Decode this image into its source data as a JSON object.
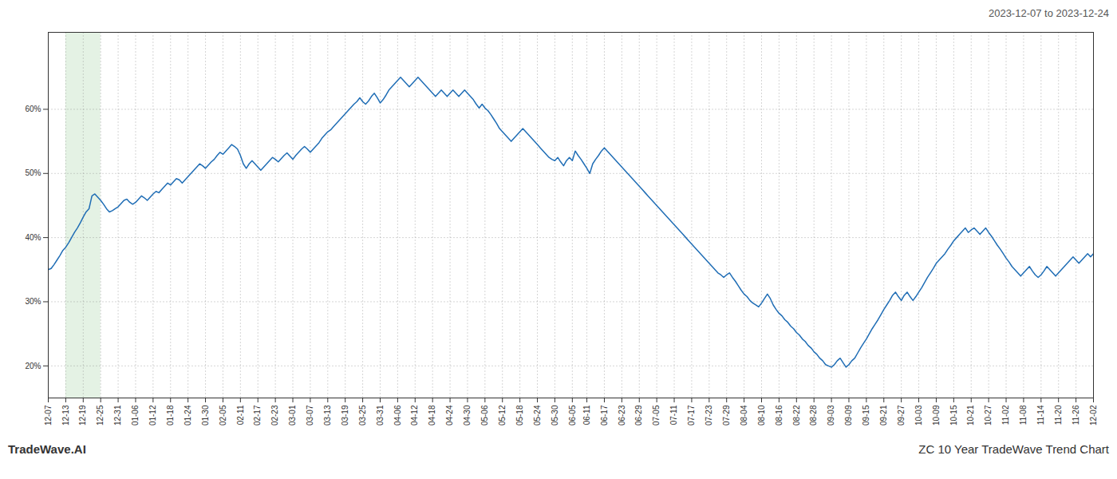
{
  "chart_data": {
    "type": "line",
    "annotations": [
      "2023-12-07 to 2023-12-24",
      "TradeWave.AI",
      "ZC 10 Year TradeWave Trend Chart"
    ],
    "color": "#1f6db5",
    "grid": true,
    "highlight": {
      "from": "12-13",
      "to": "12-25",
      "color": "#d9edd9"
    },
    "ylim": [
      15,
      72
    ],
    "yticks": [
      {
        "value": 20,
        "label": "20%"
      },
      {
        "value": 30,
        "label": "30%"
      },
      {
        "value": 40,
        "label": "40%"
      },
      {
        "value": 50,
        "label": "50%"
      },
      {
        "value": 60,
        "label": "60%"
      }
    ],
    "categories": [
      "12-07",
      null,
      null,
      null,
      null,
      null,
      "12-13",
      null,
      null,
      null,
      null,
      null,
      "12-19",
      null,
      null,
      null,
      null,
      null,
      "12-25",
      null,
      null,
      null,
      null,
      null,
      "12-31",
      null,
      null,
      null,
      null,
      null,
      "01-06",
      null,
      null,
      null,
      null,
      null,
      "01-12",
      null,
      null,
      null,
      null,
      null,
      "01-18",
      null,
      null,
      null,
      null,
      null,
      "01-24",
      null,
      null,
      null,
      null,
      null,
      "01-30",
      null,
      null,
      null,
      null,
      null,
      "02-05",
      null,
      null,
      null,
      null,
      null,
      "02-11",
      null,
      null,
      null,
      null,
      null,
      "02-17",
      null,
      null,
      null,
      null,
      null,
      "02-23",
      null,
      null,
      null,
      null,
      null,
      "03-01",
      null,
      null,
      null,
      null,
      null,
      "03-07",
      null,
      null,
      null,
      null,
      null,
      "03-13",
      null,
      null,
      null,
      null,
      null,
      "03-19",
      null,
      null,
      null,
      null,
      null,
      "03-25",
      null,
      null,
      null,
      null,
      null,
      "03-31",
      null,
      null,
      null,
      null,
      null,
      "04-06",
      null,
      null,
      null,
      null,
      null,
      "04-12",
      null,
      null,
      null,
      null,
      null,
      "04-18",
      null,
      null,
      null,
      null,
      null,
      "04-24",
      null,
      null,
      null,
      null,
      null,
      "04-30",
      null,
      null,
      null,
      null,
      null,
      "05-06",
      null,
      null,
      null,
      null,
      null,
      "05-12",
      null,
      null,
      null,
      null,
      null,
      "05-18",
      null,
      null,
      null,
      null,
      null,
      "05-24",
      null,
      null,
      null,
      null,
      null,
      "05-30",
      null,
      null,
      null,
      null,
      null,
      "06-05",
      null,
      null,
      null,
      null,
      "06-11",
      null,
      null,
      null,
      null,
      null,
      "06-17",
      null,
      null,
      null,
      null,
      null,
      "06-23",
      null,
      null,
      null,
      null,
      null,
      "06-29",
      null,
      null,
      null,
      null,
      null,
      "07-05",
      null,
      null,
      null,
      null,
      null,
      "07-11",
      null,
      null,
      null,
      null,
      null,
      "07-17",
      null,
      null,
      null,
      null,
      null,
      "07-23",
      null,
      null,
      null,
      null,
      null,
      "07-29",
      null,
      null,
      null,
      null,
      null,
      "08-04",
      null,
      null,
      null,
      null,
      null,
      "08-10",
      null,
      null,
      null,
      null,
      null,
      "08-16",
      null,
      null,
      null,
      null,
      null,
      "08-22",
      null,
      null,
      null,
      null,
      null,
      "08-28",
      null,
      null,
      null,
      null,
      null,
      "09-03",
      null,
      null,
      null,
      null,
      null,
      "09-09",
      null,
      null,
      null,
      null,
      null,
      "09-15",
      null,
      null,
      null,
      null,
      null,
      "09-21",
      null,
      null,
      null,
      null,
      null,
      "09-27",
      null,
      null,
      null,
      null,
      null,
      "10-03",
      null,
      null,
      null,
      null,
      null,
      "10-09",
      null,
      null,
      null,
      null,
      null,
      "10-15",
      null,
      null,
      null,
      null,
      null,
      "10-21",
      null,
      null,
      null,
      null,
      null,
      "10-27",
      null,
      null,
      null,
      null,
      null,
      "11-02",
      null,
      null,
      null,
      null,
      null,
      "11-08",
      null,
      null,
      null,
      null,
      null,
      "11-14",
      null,
      null,
      null,
      null,
      null,
      "11-20",
      null,
      null,
      null,
      null,
      null,
      "11-26",
      null,
      null,
      null,
      null,
      null,
      "12-02"
    ],
    "values": [
      35.0,
      35.2,
      35.8,
      36.5,
      37.2,
      38.0,
      38.5,
      39.2,
      40.0,
      40.8,
      41.5,
      42.3,
      43.2,
      44.0,
      44.5,
      46.5,
      46.8,
      46.3,
      45.8,
      45.2,
      44.5,
      44.0,
      44.2,
      44.5,
      44.8,
      45.3,
      45.8,
      46.0,
      45.5,
      45.2,
      45.5,
      46.0,
      46.5,
      46.2,
      45.8,
      46.3,
      46.8,
      47.2,
      47.0,
      47.5,
      48.0,
      48.5,
      48.2,
      48.7,
      49.2,
      49.0,
      48.5,
      49.0,
      49.5,
      50.0,
      50.5,
      51.0,
      51.5,
      51.2,
      50.8,
      51.3,
      51.8,
      52.2,
      52.8,
      53.3,
      53.0,
      53.5,
      54.0,
      54.5,
      54.2,
      53.8,
      52.8,
      51.5,
      50.8,
      51.5,
      52.0,
      51.5,
      51.0,
      50.5,
      51.0,
      51.5,
      52.0,
      52.5,
      52.2,
      51.8,
      52.3,
      52.8,
      53.2,
      52.7,
      52.2,
      52.8,
      53.3,
      53.8,
      54.2,
      53.8,
      53.3,
      53.8,
      54.3,
      54.8,
      55.5,
      56.0,
      56.5,
      56.8,
      57.3,
      57.8,
      58.3,
      58.8,
      59.3,
      59.8,
      60.3,
      60.8,
      61.2,
      61.8,
      61.2,
      60.8,
      61.3,
      62.0,
      62.5,
      61.8,
      61.0,
      61.5,
      62.2,
      63.0,
      63.5,
      64.0,
      64.5,
      65.0,
      64.5,
      64.0,
      63.5,
      64.0,
      64.5,
      65.0,
      64.5,
      64.0,
      63.5,
      63.0,
      62.5,
      62.0,
      62.5,
      63.0,
      62.5,
      62.0,
      62.5,
      63.0,
      62.5,
      62.0,
      62.5,
      63.0,
      62.5,
      62.0,
      61.5,
      60.8,
      60.2,
      60.8,
      60.2,
      59.8,
      59.2,
      58.5,
      57.8,
      57.0,
      56.5,
      56.0,
      55.5,
      55.0,
      55.5,
      56.0,
      56.5,
      57.0,
      56.5,
      56.0,
      55.5,
      55.0,
      54.5,
      54.0,
      53.5,
      53.0,
      52.5,
      52.2,
      52.0,
      52.5,
      51.8,
      51.2,
      52.0,
      52.5,
      52.0,
      53.5,
      52.8,
      52.2,
      51.5,
      50.8,
      50.0,
      51.5,
      52.2,
      52.8,
      53.5,
      54.0,
      53.5,
      53.0,
      52.5,
      52.0,
      51.5,
      51.0,
      50.5,
      50.0,
      49.5,
      49.0,
      48.5,
      48.0,
      47.5,
      47.0,
      46.5,
      46.0,
      45.5,
      45.0,
      44.5,
      44.0,
      43.5,
      43.0,
      42.5,
      42.0,
      41.5,
      41.0,
      40.5,
      40.0,
      39.5,
      39.0,
      38.5,
      38.0,
      37.5,
      37.0,
      36.5,
      36.0,
      35.5,
      35.0,
      34.5,
      34.2,
      33.8,
      34.2,
      34.5,
      33.8,
      33.2,
      32.5,
      31.8,
      31.2,
      30.8,
      30.2,
      29.8,
      29.5,
      29.2,
      29.8,
      30.5,
      31.2,
      30.5,
      29.5,
      28.8,
      28.2,
      27.8,
      27.2,
      26.8,
      26.2,
      25.8,
      25.2,
      24.8,
      24.2,
      23.8,
      23.2,
      22.8,
      22.2,
      21.8,
      21.2,
      20.8,
      20.2,
      20.0,
      19.8,
      20.2,
      20.8,
      21.2,
      20.5,
      19.8,
      20.2,
      20.8,
      21.2,
      22.0,
      22.8,
      23.5,
      24.2,
      25.0,
      25.8,
      26.5,
      27.2,
      28.0,
      28.8,
      29.5,
      30.2,
      31.0,
      31.5,
      30.8,
      30.2,
      31.0,
      31.5,
      30.8,
      30.2,
      30.8,
      31.5,
      32.2,
      33.0,
      33.8,
      34.5,
      35.2,
      36.0,
      36.5,
      37.0,
      37.5,
      38.2,
      38.8,
      39.5,
      40.0,
      40.5,
      41.0,
      41.5,
      40.8,
      41.2,
      41.5,
      41.0,
      40.5,
      41.0,
      41.5,
      40.8,
      40.2,
      39.5,
      38.8,
      38.2,
      37.5,
      36.8,
      36.2,
      35.5,
      35.0,
      34.5,
      34.0,
      34.5,
      35.0,
      35.5,
      34.8,
      34.2,
      33.8,
      34.2,
      34.8,
      35.5,
      35.0,
      34.5,
      34.0,
      34.5,
      35.0,
      35.5,
      36.0,
      36.5,
      37.0,
      36.5,
      36.0,
      36.5,
      37.0,
      37.5,
      37.0,
      37.5
    ]
  }
}
